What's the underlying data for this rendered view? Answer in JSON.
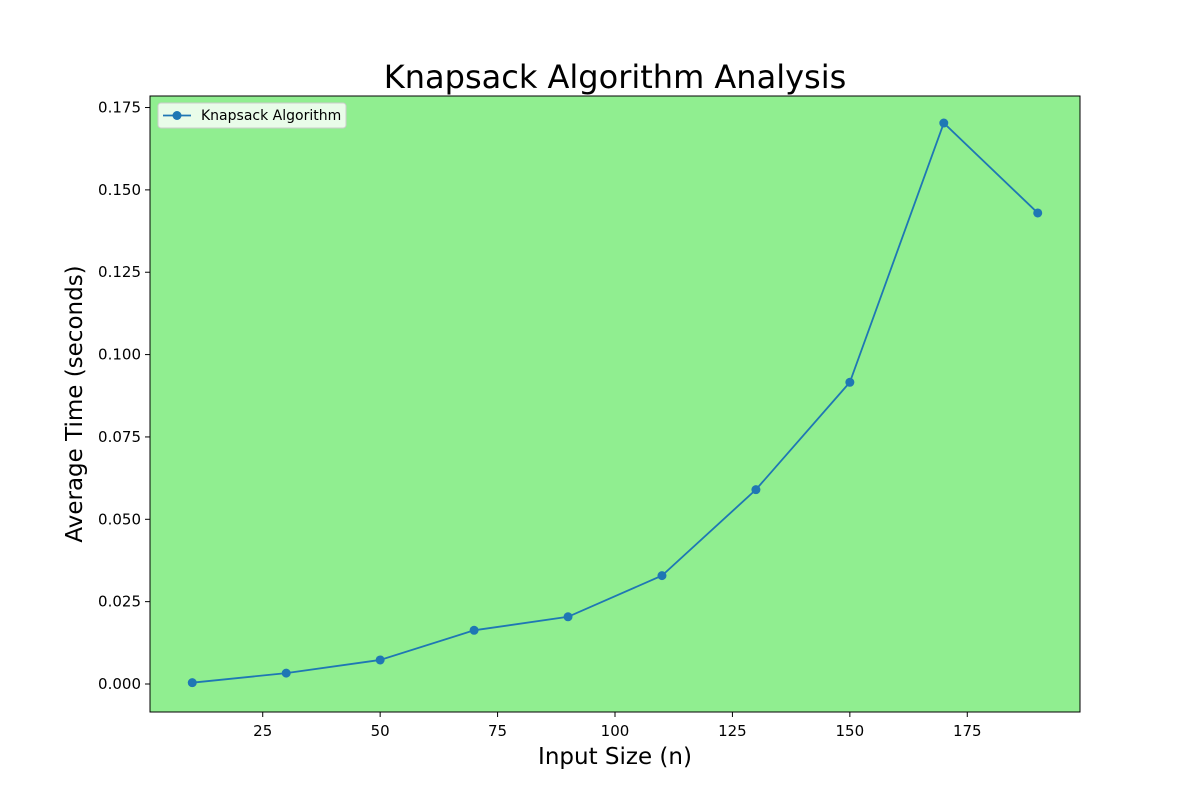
{
  "chart_data": {
    "type": "line",
    "title": "Knapsack Algorithm Analysis",
    "xlabel": "Input Size (n)",
    "ylabel": "Average Time (seconds)",
    "xlim": [
      1,
      199
    ],
    "ylim": [
      -0.0085,
      0.1785
    ],
    "xticks": [
      25,
      50,
      75,
      100,
      125,
      150,
      175
    ],
    "xtick_labels": [
      "25",
      "50",
      "75",
      "100",
      "125",
      "150",
      "175"
    ],
    "yticks": [
      0.0,
      0.025,
      0.05,
      0.075,
      0.1,
      0.125,
      0.15,
      0.175
    ],
    "ytick_labels": [
      "0.000",
      "0.025",
      "0.050",
      "0.075",
      "0.100",
      "0.125",
      "0.150",
      "0.175"
    ],
    "grid": false,
    "legend_position": "top-left",
    "plot_background": "#90ee90",
    "x": [
      10,
      30,
      50,
      70,
      90,
      110,
      130,
      150,
      170,
      190
    ],
    "series": [
      {
        "name": "Knapsack Algorithm",
        "color": "#1f77b4",
        "marker": "circle",
        "values": [
          0.0004,
          0.0033,
          0.0073,
          0.0163,
          0.0204,
          0.0329,
          0.059,
          0.0916,
          0.1703,
          0.143
        ]
      }
    ]
  }
}
